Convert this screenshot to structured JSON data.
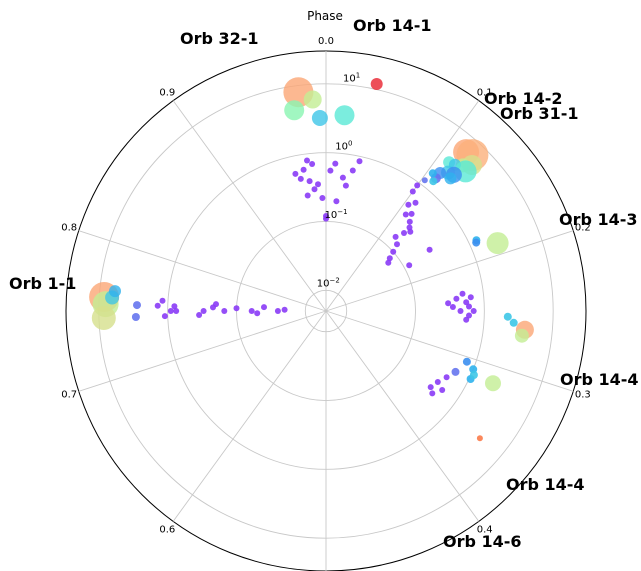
{
  "chart_data": {
    "type": "scatter",
    "title": "",
    "projection": "polar",
    "angle_axis": {
      "label": "Phase",
      "direction": "clockwise",
      "zero_location": "top",
      "ticks": [
        0.0,
        0.1,
        0.2,
        0.3,
        0.4,
        0.5,
        0.6,
        0.7,
        0.8,
        0.9
      ],
      "tick_labels": [
        "0.0",
        "0.1",
        "0.2",
        "0.3",
        "0.4",
        "",
        "0.6",
        "0.7",
        "0.8",
        "0.9"
      ]
    },
    "radial_axis": {
      "scale": "log",
      "range": [
        0.005,
        30
      ],
      "ticks": [
        0.01,
        0.1,
        1,
        10
      ],
      "tick_labels": [
        "10^-2",
        "10^-1",
        "10^0",
        "10^1"
      ]
    },
    "grid": true,
    "colormap": "rainbow",
    "annotations": [
      {
        "text": "Orb 14-1",
        "phase": 0.03,
        "r": 20
      },
      {
        "text": "Orb 32-1",
        "phase": 0.955,
        "r": 14
      },
      {
        "text": "Orb 14-2",
        "phase": 0.11,
        "r": 14
      },
      {
        "text": "Orb 31-1",
        "phase": 0.125,
        "r": 18
      },
      {
        "text": "Orb 14-3",
        "phase": 0.19,
        "r": 24
      },
      {
        "text": "Orb 1-1",
        "phase": 0.77,
        "r": 22
      },
      {
        "text": "Orb 14-4",
        "phase": 0.275,
        "r": 26
      },
      {
        "text": "Orb 14-4",
        "phase": 0.315,
        "r": 20
      },
      {
        "text": "Orb 14-6",
        "phase": 0.36,
        "r": 18
      }
    ],
    "points": [
      {
        "phase": 0.035,
        "r": 12,
        "size": 6,
        "color": "#e8222e"
      },
      {
        "phase": 0.98,
        "r": 8,
        "size": 15,
        "color": "#fba675"
      },
      {
        "phase": 0.99,
        "r": 6,
        "size": 9,
        "color": "#c3ee93"
      },
      {
        "phase": 0.975,
        "r": 4.5,
        "size": 10,
        "color": "#8af5b2"
      },
      {
        "phase": 0.995,
        "r": 3.2,
        "size": 8,
        "color": "#3ec6e7"
      },
      {
        "phase": 0.015,
        "r": 3.6,
        "size": 10,
        "color": "#5ae9d6"
      },
      {
        "phase": 0.115,
        "r": 6.0,
        "size": 13,
        "color": "#fba675"
      },
      {
        "phase": 0.12,
        "r": 6.4,
        "size": 16,
        "color": "#fbb07c"
      },
      {
        "phase": 0.125,
        "r": 5.0,
        "size": 10,
        "color": "#d6e08c"
      },
      {
        "phase": 0.12,
        "r": 4.0,
        "size": 7,
        "color": "#c3ee93"
      },
      {
        "phase": 0.11,
        "r": 3.2,
        "size": 6,
        "color": "#5ae9d6"
      },
      {
        "phase": 0.115,
        "r": 3.4,
        "size": 6,
        "color": "#3ec6e7"
      },
      {
        "phase": 0.125,
        "r": 3.7,
        "size": 11,
        "color": "#5ae9d6"
      },
      {
        "phase": 0.115,
        "r": 2.4,
        "size": 7,
        "color": "#3ec6e7"
      },
      {
        "phase": 0.12,
        "r": 2.6,
        "size": 8,
        "color": "#3b8ff0"
      },
      {
        "phase": 0.12,
        "r": 2.2,
        "size": 6,
        "color": "#2fb2ed"
      },
      {
        "phase": 0.11,
        "r": 2.0,
        "size": 6,
        "color": "#3b8ff0"
      },
      {
        "phase": 0.11,
        "r": 1.6,
        "size": 5,
        "color": "#6675ee"
      },
      {
        "phase": 0.11,
        "r": 1.4,
        "size": 4,
        "color": "#3ec6e7"
      },
      {
        "phase": 0.105,
        "r": 1.7,
        "size": 4,
        "color": "#2fb2ed"
      },
      {
        "phase": 0.103,
        "r": 1.2,
        "size": 3,
        "color": "#6675ee"
      },
      {
        "phase": 0.98,
        "r": 0.8,
        "size": 3,
        "color": "#8a3bf6"
      },
      {
        "phase": 0.985,
        "r": 0.7,
        "size": 3,
        "color": "#8a3bf6"
      },
      {
        "phase": 0.975,
        "r": 0.6,
        "size": 3,
        "color": "#8a3bf6"
      },
      {
        "phase": 0.965,
        "r": 0.55,
        "size": 3,
        "color": "#8a3bf6"
      },
      {
        "phase": 0.97,
        "r": 0.45,
        "size": 3,
        "color": "#8a3bf6"
      },
      {
        "phase": 0.98,
        "r": 0.4,
        "size": 3,
        "color": "#8a3bf6"
      },
      {
        "phase": 0.99,
        "r": 0.35,
        "size": 3,
        "color": "#8a3bf6"
      },
      {
        "phase": 0.985,
        "r": 0.3,
        "size": 3,
        "color": "#8a3bf6"
      },
      {
        "phase": 0.975,
        "r": 0.25,
        "size": 3,
        "color": "#8a3bf6"
      },
      {
        "phase": 0.995,
        "r": 0.22,
        "size": 3,
        "color": "#8a3bf6"
      },
      {
        "phase": 0.005,
        "r": 0.55,
        "size": 3,
        "color": "#8a3bf6"
      },
      {
        "phase": 0.01,
        "r": 0.7,
        "size": 3,
        "color": "#8a3bf6"
      },
      {
        "phase": 0.02,
        "r": 0.45,
        "size": 3,
        "color": "#8a3bf6"
      },
      {
        "phase": 0.025,
        "r": 0.35,
        "size": 3,
        "color": "#8a3bf6"
      },
      {
        "phase": 0.03,
        "r": 0.6,
        "size": 3,
        "color": "#8a3bf6"
      },
      {
        "phase": 0.035,
        "r": 0.85,
        "size": 3,
        "color": "#8a3bf6"
      },
      {
        "phase": 0.015,
        "r": 0.2,
        "size": 3,
        "color": "#8a3bf6"
      },
      {
        "phase": 0.0,
        "r": 0.12,
        "size": 3,
        "color": "#8a3bf6"
      },
      {
        "phase": 0.0,
        "r": 0.11,
        "size": 3,
        "color": "#8a3bf6"
      },
      {
        "phase": 0.1,
        "r": 0.9,
        "size": 3,
        "color": "#8a3bf6"
      },
      {
        "phase": 0.1,
        "r": 0.7,
        "size": 3,
        "color": "#8a3bf6"
      },
      {
        "phase": 0.11,
        "r": 0.55,
        "size": 3,
        "color": "#8a3bf6"
      },
      {
        "phase": 0.105,
        "r": 0.45,
        "size": 3,
        "color": "#8a3bf6"
      },
      {
        "phase": 0.115,
        "r": 0.38,
        "size": 3,
        "color": "#8a3bf6"
      },
      {
        "phase": 0.11,
        "r": 0.33,
        "size": 3,
        "color": "#8a3bf6"
      },
      {
        "phase": 0.12,
        "r": 0.3,
        "size": 3,
        "color": "#8a3bf6"
      },
      {
        "phase": 0.125,
        "r": 0.26,
        "size": 3,
        "color": "#8a3bf6"
      },
      {
        "phase": 0.13,
        "r": 0.24,
        "size": 3,
        "color": "#8a3bf6"
      },
      {
        "phase": 0.125,
        "r": 0.2,
        "size": 3,
        "color": "#8a3bf6"
      },
      {
        "phase": 0.12,
        "r": 0.15,
        "size": 3,
        "color": "#8a3bf6"
      },
      {
        "phase": 0.13,
        "r": 0.13,
        "size": 3,
        "color": "#8a3bf6"
      },
      {
        "phase": 0.135,
        "r": 0.1,
        "size": 3,
        "color": "#8a3bf6"
      },
      {
        "phase": 0.14,
        "r": 0.08,
        "size": 3,
        "color": "#8a3bf6"
      },
      {
        "phase": 0.145,
        "r": 0.07,
        "size": 3,
        "color": "#8a3bf6"
      },
      {
        "phase": 0.165,
        "r": 0.28,
        "size": 3,
        "color": "#8a3bf6"
      },
      {
        "phase": 0.17,
        "r": 0.12,
        "size": 3,
        "color": "#8a3bf6"
      },
      {
        "phase": 0.19,
        "r": 2.4,
        "size": 11,
        "color": "#c3ee93"
      },
      {
        "phase": 0.18,
        "r": 1.3,
        "size": 4,
        "color": "#2fb2ed"
      },
      {
        "phase": 0.182,
        "r": 1.25,
        "size": 4,
        "color": "#3b8ff0"
      },
      {
        "phase": 0.245,
        "r": 0.35,
        "size": 3,
        "color": "#8a3bf6"
      },
      {
        "phase": 0.24,
        "r": 0.3,
        "size": 3,
        "color": "#8a3bf6"
      },
      {
        "phase": 0.235,
        "r": 0.4,
        "size": 3,
        "color": "#8a3bf6"
      },
      {
        "phase": 0.23,
        "r": 0.5,
        "size": 3,
        "color": "#8a3bf6"
      },
      {
        "phase": 0.24,
        "r": 0.55,
        "size": 3,
        "color": "#8a3bf6"
      },
      {
        "phase": 0.25,
        "r": 0.45,
        "size": 3,
        "color": "#8a3bf6"
      },
      {
        "phase": 0.245,
        "r": 0.6,
        "size": 3,
        "color": "#8a3bf6"
      },
      {
        "phase": 0.255,
        "r": 0.6,
        "size": 3,
        "color": "#8a3bf6"
      },
      {
        "phase": 0.26,
        "r": 0.55,
        "size": 3,
        "color": "#8a3bf6"
      },
      {
        "phase": 0.235,
        "r": 0.65,
        "size": 3,
        "color": "#8a3bf6"
      },
      {
        "phase": 0.25,
        "r": 0.7,
        "size": 3,
        "color": "#8a3bf6"
      },
      {
        "phase": 0.265,
        "r": 4.0,
        "size": 9,
        "color": "#fba675"
      },
      {
        "phase": 0.255,
        "r": 2.2,
        "size": 4,
        "color": "#3ec6e7"
      },
      {
        "phase": 0.26,
        "r": 2.7,
        "size": 4,
        "color": "#3ec6e7"
      },
      {
        "phase": 0.27,
        "r": 3.7,
        "size": 7,
        "color": "#c3ee93"
      },
      {
        "phase": 0.315,
        "r": 2.2,
        "size": 8,
        "color": "#c3ee93"
      },
      {
        "phase": 0.31,
        "r": 1.0,
        "size": 4,
        "color": "#2fb2ed"
      },
      {
        "phase": 0.32,
        "r": 1.05,
        "size": 4,
        "color": "#2fb2ed"
      },
      {
        "phase": 0.315,
        "r": 1.1,
        "size": 4,
        "color": "#3ec6e7"
      },
      {
        "phase": 0.305,
        "r": 0.75,
        "size": 4,
        "color": "#3b8ff0"
      },
      {
        "phase": 0.32,
        "r": 0.6,
        "size": 4,
        "color": "#6675ee"
      },
      {
        "phase": 0.33,
        "r": 0.5,
        "size": 3,
        "color": "#8a3bf6"
      },
      {
        "phase": 0.34,
        "r": 0.42,
        "size": 3,
        "color": "#8a3bf6"
      },
      {
        "phase": 0.345,
        "r": 0.55,
        "size": 3,
        "color": "#8a3bf6"
      },
      {
        "phase": 0.35,
        "r": 0.38,
        "size": 3,
        "color": "#8a3bf6"
      },
      {
        "phase": 0.355,
        "r": 0.45,
        "size": 3,
        "color": "#8a3bf6"
      },
      {
        "phase": 0.36,
        "r": 4.0,
        "size": 3,
        "color": "#fb7b4a"
      },
      {
        "phase": 0.76,
        "r": 8.5,
        "size": 15,
        "color": "#fba675"
      },
      {
        "phase": 0.755,
        "r": 8.0,
        "size": 13,
        "color": "#c3ee93"
      },
      {
        "phase": 0.745,
        "r": 8.5,
        "size": 12,
        "color": "#d6e08c"
      },
      {
        "phase": 0.76,
        "r": 6.5,
        "size": 7,
        "color": "#3ec6e7"
      },
      {
        "phase": 0.765,
        "r": 6.0,
        "size": 6,
        "color": "#2fb2ed"
      },
      {
        "phase": 0.755,
        "r": 2.8,
        "size": 4,
        "color": "#6675ee"
      },
      {
        "phase": 0.745,
        "r": 2.9,
        "size": 4,
        "color": "#6675ee"
      },
      {
        "phase": 0.755,
        "r": 1.4,
        "size": 3,
        "color": "#8a3bf6"
      },
      {
        "phase": 0.76,
        "r": 1.2,
        "size": 3,
        "color": "#8a3bf6"
      },
      {
        "phase": 0.745,
        "r": 1.1,
        "size": 3,
        "color": "#8a3bf6"
      },
      {
        "phase": 0.75,
        "r": 0.9,
        "size": 3,
        "color": "#8a3bf6"
      },
      {
        "phase": 0.755,
        "r": 0.8,
        "size": 3,
        "color": "#8a3bf6"
      },
      {
        "phase": 0.75,
        "r": 0.75,
        "size": 3,
        "color": "#8a3bf6"
      },
      {
        "phase": 0.745,
        "r": 0.35,
        "size": 3,
        "color": "#8a3bf6"
      },
      {
        "phase": 0.75,
        "r": 0.3,
        "size": 3,
        "color": "#8a3bf6"
      },
      {
        "phase": 0.755,
        "r": 0.22,
        "size": 3,
        "color": "#8a3bf6"
      },
      {
        "phase": 0.76,
        "r": 0.2,
        "size": 3,
        "color": "#8a3bf6"
      },
      {
        "phase": 0.75,
        "r": 0.15,
        "size": 3,
        "color": "#8a3bf6"
      },
      {
        "phase": 0.755,
        "r": 0.1,
        "size": 3,
        "color": "#8a3bf6"
      },
      {
        "phase": 0.75,
        "r": 0.06,
        "size": 3,
        "color": "#8a3bf6"
      },
      {
        "phase": 0.745,
        "r": 0.05,
        "size": 3,
        "color": "#8a3bf6"
      },
      {
        "phase": 0.76,
        "r": 0.04,
        "size": 3,
        "color": "#8a3bf6"
      },
      {
        "phase": 0.75,
        "r": 0.025,
        "size": 3,
        "color": "#8a3bf6"
      },
      {
        "phase": 0.755,
        "r": 0.02,
        "size": 3,
        "color": "#8a3bf6"
      }
    ]
  }
}
